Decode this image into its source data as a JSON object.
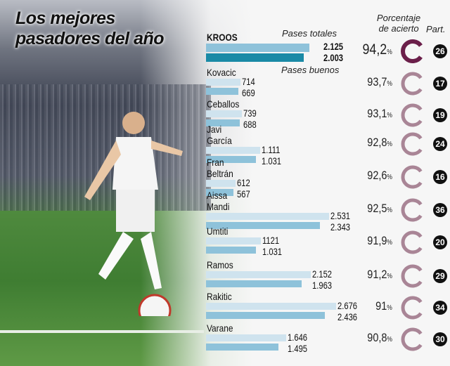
{
  "chart_data": {
    "type": "bar",
    "title": "Los mejores pasadores del año",
    "headers": {
      "total": "Pases totales",
      "good": "Pases buenos",
      "pct": "Porcentaje de acierto",
      "games": "Part."
    },
    "colors": {
      "total": "#cfe3ee",
      "good": "#8ec2da",
      "kroos_total": "#8ec2da",
      "kroos_good": "#1a8aa6",
      "ring_kroos": "#6b1f4a",
      "ring": "#a98596"
    },
    "players": [
      {
        "name": "KROOS",
        "total": 2125,
        "good": 2003,
        "total_label": "2.125",
        "good_label": "2.003",
        "pct": 94.2,
        "pct_label": "94,2",
        "games": "26"
      },
      {
        "name": "Kovacic",
        "total": 714,
        "good": 669,
        "total_label": "714",
        "good_label": "669",
        "pct": 93.7,
        "pct_label": "93,7",
        "games": "17"
      },
      {
        "name": "Ceballos",
        "total": 739,
        "good": 688,
        "total_label": "739",
        "good_label": "688",
        "pct": 93.1,
        "pct_label": "93,1",
        "games": "19"
      },
      {
        "name": "Javi García",
        "total": 1111,
        "good": 1031,
        "total_label": "1.111",
        "good_label": "1.031",
        "pct": 92.8,
        "pct_label": "92,8",
        "games": "24"
      },
      {
        "name": "Fran Beltrán",
        "total": 612,
        "good": 567,
        "total_label": "612",
        "good_label": "567",
        "pct": 92.6,
        "pct_label": "92,6",
        "games": "16"
      },
      {
        "name": "Aissa Mandi",
        "total": 2531,
        "good": 2343,
        "total_label": "2.531",
        "good_label": "2.343",
        "pct": 92.5,
        "pct_label": "92,5",
        "games": "36"
      },
      {
        "name": "Umtiti",
        "total": 1121,
        "good": 1031,
        "total_label": "1121",
        "good_label": "1.031",
        "pct": 91.9,
        "pct_label": "91,9",
        "games": "20"
      },
      {
        "name": "Ramos",
        "total": 2152,
        "good": 1963,
        "total_label": "2.152",
        "good_label": "1.963",
        "pct": 91.2,
        "pct_label": "91,2",
        "games": "29"
      },
      {
        "name": "Rakitic",
        "total": 2676,
        "good": 2436,
        "total_label": "2.676",
        "good_label": "2.436",
        "pct": 91,
        "pct_label": "91",
        "games": "34"
      },
      {
        "name": "Varane",
        "total": 1646,
        "good": 1495,
        "total_label": "1.646",
        "good_label": "1.495",
        "pct": 90.8,
        "pct_label": "90,8",
        "games": "30"
      }
    ],
    "pct_unit": "%"
  }
}
